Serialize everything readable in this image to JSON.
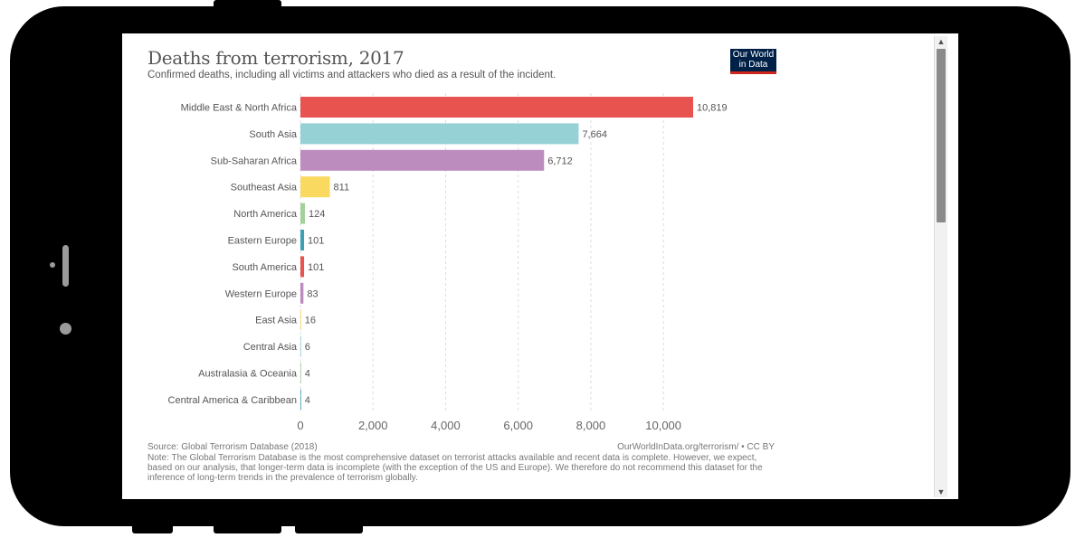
{
  "chart_data": {
    "type": "bar",
    "orientation": "horizontal",
    "title": "Deaths from terrorism, 2017",
    "subtitle": "Confirmed deaths, including all victims and attackers who died as a result of the incident.",
    "categories": [
      "Middle East & North Africa",
      "South Asia",
      "Sub-Saharan Africa",
      "Southeast Asia",
      "North America",
      "Eastern Europe",
      "South America",
      "Western Europe",
      "East Asia",
      "Central Asia",
      "Australasia & Oceania",
      "Central America & Caribbean"
    ],
    "values": [
      10819,
      7664,
      6712,
      811,
      124,
      101,
      101,
      83,
      16,
      6,
      4,
      4
    ],
    "value_labels": [
      "10,819",
      "7,664",
      "6,712",
      "811",
      "124",
      "101",
      "101",
      "83",
      "16",
      "6",
      "4",
      "4"
    ],
    "colors": [
      "#e8524f",
      "#96d1d5",
      "#bd8cbe",
      "#fad961",
      "#a4d09d",
      "#3d9fb5",
      "#e8524f",
      "#bd8cbe",
      "#fad961",
      "#96d1d5",
      "#a4d09d",
      "#3d9fb5"
    ],
    "xlim": [
      0,
      10819
    ],
    "xticks": [
      0,
      2000,
      4000,
      6000,
      8000,
      10000
    ],
    "xtick_labels": [
      "0",
      "2,000",
      "4,000",
      "6,000",
      "8,000",
      "10,000"
    ],
    "grid": "vertical-dashed",
    "xlabel": "",
    "ylabel": ""
  },
  "logo": {
    "line1": "Our World",
    "line2": "in Data"
  },
  "footer": {
    "source": "Source: Global Terrorism Database (2018)",
    "url": "OurWorldInData.org/terrorism/ • CC BY",
    "note": "Note: The Global Terrorism Database is the most comprehensive dataset on terrorist attacks available and recent data is complete. However, we expect, based on our analysis, that longer-term data is incomplete (with the exception of the US and Europe). We therefore do not recommend this dataset for the inference of long-term trends in the prevalence of terrorism globally."
  },
  "scroll": {
    "up": "▲",
    "down": "▼"
  }
}
